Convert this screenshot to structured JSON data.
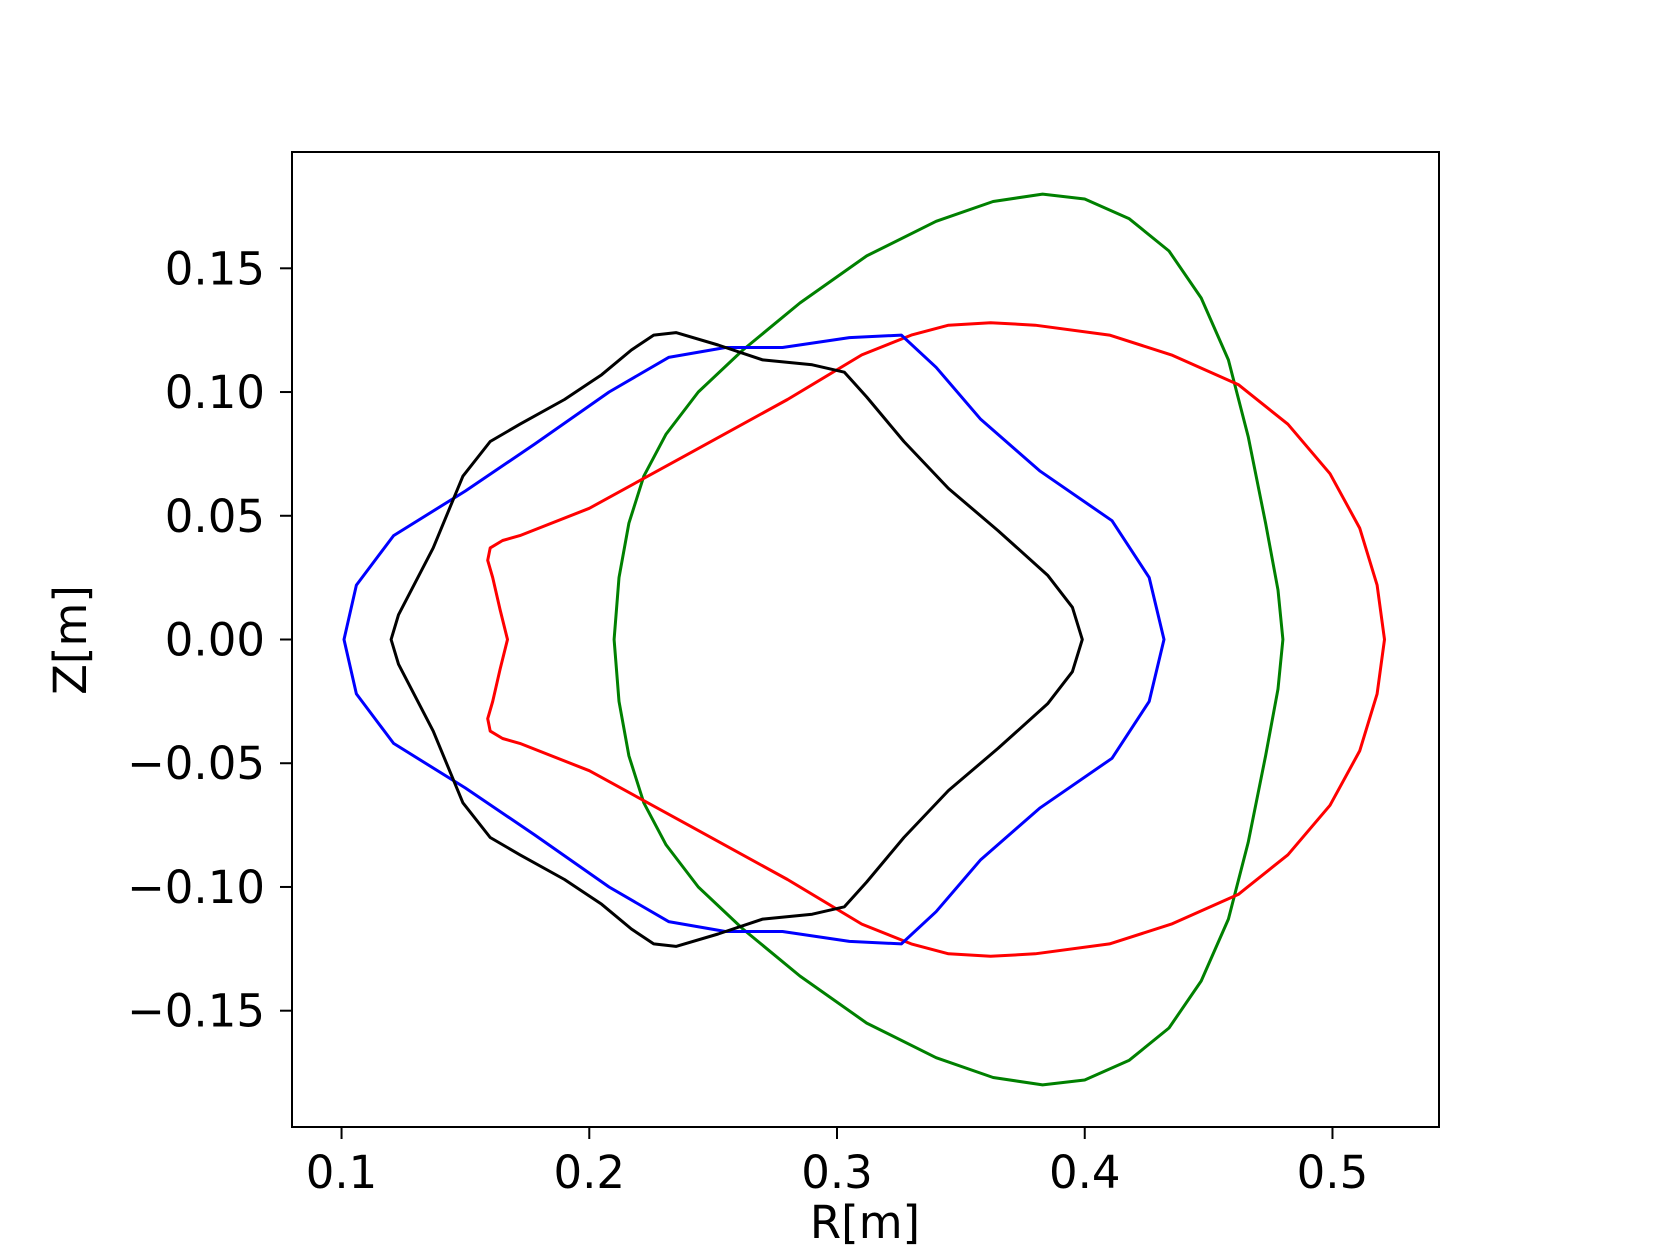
{
  "chart_data": {
    "type": "line",
    "title": "",
    "xlabel": "R[m]",
    "ylabel": "Z[m]",
    "xlim": [
      0.08,
      0.543
    ],
    "ylim": [
      -0.197,
      0.197
    ],
    "grid": false,
    "x_ticks": [
      0.1,
      0.2,
      0.3,
      0.4,
      0.5
    ],
    "x_tick_labels": [
      "0.1",
      "0.2",
      "0.3",
      "0.4",
      "0.5"
    ],
    "y_ticks": [
      0.15,
      0.1,
      0.05,
      0.0,
      -0.05,
      -0.1,
      -0.15
    ],
    "y_tick_labels": [
      "0.15",
      "0.10",
      "0.05",
      "0.00",
      "−0.05",
      "−0.10",
      "−0.15"
    ],
    "series": [
      {
        "color": "#008000",
        "closed": true,
        "x": [
          0.21,
          0.212,
          0.216,
          0.222,
          0.231,
          0.244,
          0.262,
          0.285,
          0.312,
          0.34,
          0.363,
          0.383,
          0.4,
          0.418,
          0.434,
          0.447,
          0.458,
          0.466,
          0.473,
          0.478,
          0.48,
          0.478,
          0.473,
          0.466,
          0.458,
          0.447,
          0.434,
          0.418,
          0.4,
          0.383,
          0.363,
          0.34,
          0.312,
          0.285,
          0.262,
          0.244,
          0.231,
          0.222,
          0.216,
          0.212
        ],
        "y": [
          0.0,
          0.025,
          0.047,
          0.066,
          0.083,
          0.1,
          0.117,
          0.136,
          0.155,
          0.169,
          0.177,
          0.18,
          0.178,
          0.17,
          0.157,
          0.138,
          0.113,
          0.082,
          0.047,
          0.02,
          0.0,
          -0.02,
          -0.047,
          -0.082,
          -0.113,
          -0.138,
          -0.157,
          -0.17,
          -0.178,
          -0.18,
          -0.177,
          -0.169,
          -0.155,
          -0.136,
          -0.117,
          -0.1,
          -0.083,
          -0.066,
          -0.047,
          -0.025
        ]
      },
      {
        "color": "#ff0000",
        "closed": true,
        "x": [
          0.167,
          0.164,
          0.161,
          0.159,
          0.16,
          0.165,
          0.172,
          0.2,
          0.24,
          0.28,
          0.31,
          0.33,
          0.345,
          0.362,
          0.38,
          0.41,
          0.435,
          0.462,
          0.482,
          0.499,
          0.511,
          0.518,
          0.521,
          0.518,
          0.511,
          0.499,
          0.482,
          0.462,
          0.435,
          0.41,
          0.38,
          0.362,
          0.345,
          0.33,
          0.31,
          0.28,
          0.24,
          0.2,
          0.172,
          0.165,
          0.16,
          0.159,
          0.161,
          0.164
        ],
        "y": [
          0.0,
          0.012,
          0.025,
          0.032,
          0.037,
          0.04,
          0.042,
          0.053,
          0.075,
          0.097,
          0.115,
          0.123,
          0.127,
          0.128,
          0.127,
          0.123,
          0.115,
          0.103,
          0.087,
          0.067,
          0.045,
          0.022,
          0.0,
          -0.022,
          -0.045,
          -0.067,
          -0.087,
          -0.103,
          -0.115,
          -0.123,
          -0.127,
          -0.128,
          -0.127,
          -0.123,
          -0.115,
          -0.097,
          -0.075,
          -0.053,
          -0.042,
          -0.04,
          -0.037,
          -0.032,
          -0.025,
          -0.012
        ]
      },
      {
        "color": "#0000ff",
        "closed": true,
        "x": [
          0.101,
          0.106,
          0.121,
          0.15,
          0.178,
          0.208,
          0.232,
          0.255,
          0.278,
          0.305,
          0.326,
          0.34,
          0.358,
          0.382,
          0.411,
          0.426,
          0.432,
          0.426,
          0.411,
          0.382,
          0.358,
          0.34,
          0.326,
          0.305,
          0.278,
          0.255,
          0.232,
          0.208,
          0.178,
          0.15,
          0.121,
          0.106
        ],
        "y": [
          0.0,
          0.022,
          0.042,
          0.06,
          0.079,
          0.1,
          0.114,
          0.118,
          0.118,
          0.122,
          0.123,
          0.11,
          0.089,
          0.068,
          0.048,
          0.025,
          0.0,
          -0.025,
          -0.048,
          -0.068,
          -0.089,
          -0.11,
          -0.123,
          -0.122,
          -0.118,
          -0.118,
          -0.114,
          -0.1,
          -0.079,
          -0.06,
          -0.042,
          -0.022
        ]
      },
      {
        "color": "#000000",
        "closed": true,
        "x": [
          0.12,
          0.123,
          0.137,
          0.149,
          0.16,
          0.172,
          0.19,
          0.205,
          0.217,
          0.226,
          0.235,
          0.252,
          0.27,
          0.29,
          0.303,
          0.312,
          0.327,
          0.345,
          0.365,
          0.385,
          0.395,
          0.399,
          0.395,
          0.385,
          0.365,
          0.345,
          0.327,
          0.312,
          0.303,
          0.29,
          0.27,
          0.252,
          0.235,
          0.226,
          0.217,
          0.205,
          0.19,
          0.172,
          0.16,
          0.149,
          0.137,
          0.123
        ],
        "y": [
          0.0,
          0.01,
          0.037,
          0.066,
          0.08,
          0.087,
          0.097,
          0.107,
          0.117,
          0.123,
          0.124,
          0.119,
          0.113,
          0.111,
          0.108,
          0.098,
          0.08,
          0.061,
          0.044,
          0.026,
          0.013,
          0.0,
          -0.013,
          -0.026,
          -0.044,
          -0.061,
          -0.08,
          -0.098,
          -0.108,
          -0.111,
          -0.113,
          -0.119,
          -0.124,
          -0.123,
          -0.117,
          -0.107,
          -0.097,
          -0.087,
          -0.08,
          -0.066,
          -0.037,
          -0.01
        ]
      }
    ]
  }
}
